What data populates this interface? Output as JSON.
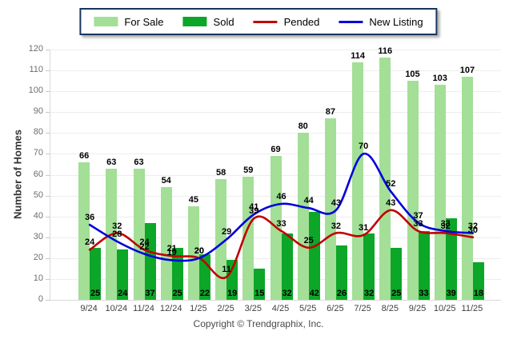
{
  "chart_data": {
    "type": "bar",
    "title": "",
    "categories": [
      "9/24",
      "10/24",
      "11/24",
      "12/24",
      "1/25",
      "2/25",
      "3/25",
      "4/25",
      "5/25",
      "6/25",
      "7/25",
      "8/25",
      "9/25",
      "10/25",
      "11/25"
    ],
    "series": [
      {
        "name": "For Sale",
        "type": "bar",
        "color": "#A3DF97",
        "values": [
          66,
          63,
          63,
          54,
          45,
          58,
          59,
          69,
          80,
          87,
          114,
          116,
          105,
          103,
          107
        ]
      },
      {
        "name": "Sold",
        "type": "bar",
        "color": "#0CA628",
        "values": [
          25,
          24,
          37,
          25,
          22,
          19,
          15,
          32,
          42,
          26,
          32,
          25,
          33,
          39,
          18
        ]
      },
      {
        "name": "Pended",
        "type": "line",
        "color": "#C00000",
        "values": [
          24,
          32,
          24,
          21,
          20,
          11,
          39,
          33,
          25,
          32,
          31,
          43,
          33,
          32,
          30
        ]
      },
      {
        "name": "New Listing",
        "type": "line",
        "color": "#0000DC",
        "values": [
          36,
          28,
          22,
          19,
          20,
          29,
          41,
          46,
          44,
          43,
          70,
          52,
          37,
          33,
          32
        ]
      }
    ],
    "ylabel": "Number of Homes",
    "xlabel": "",
    "ylim": [
      0,
      120
    ],
    "yticks": [
      0,
      10,
      20,
      30,
      40,
      50,
      60,
      70,
      80,
      90,
      100,
      110,
      120
    ],
    "grid": true,
    "legend_position": "top"
  },
  "footer": {
    "copyright": "Copyright © Trendgraphix, Inc."
  }
}
